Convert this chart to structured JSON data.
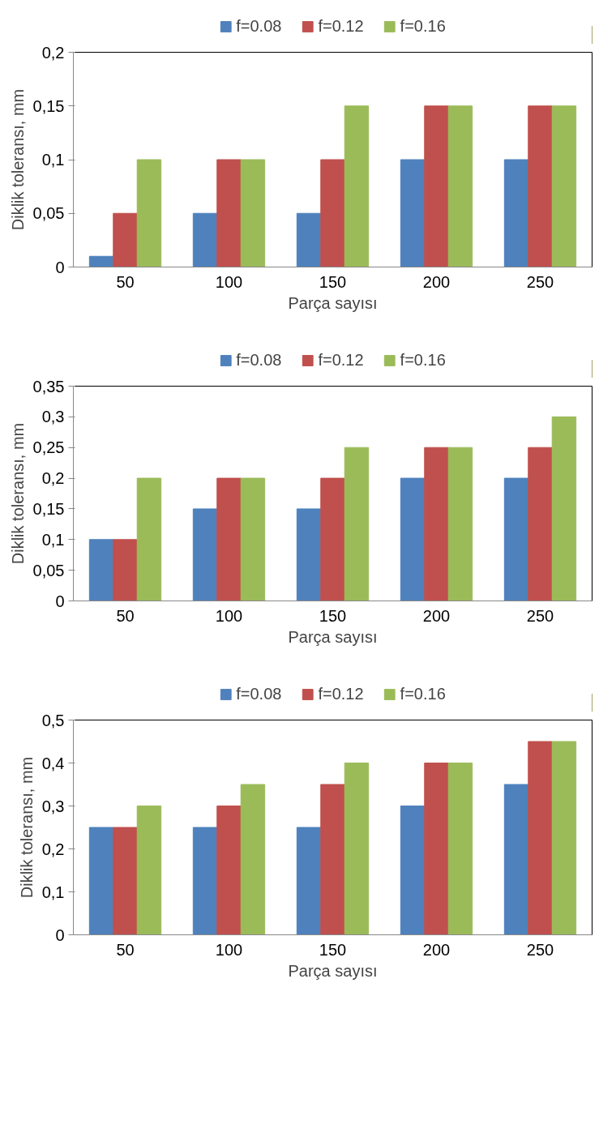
{
  "chart_data": [
    {
      "type": "bar",
      "xlabel": "Parça sayısı",
      "ylabel": "Diklik toleransı, mm",
      "categories": [
        "50",
        "100",
        "150",
        "200",
        "250"
      ],
      "series": [
        {
          "name": "f=0.08",
          "color": "#4f81bd",
          "values": [
            0.01,
            0.05,
            0.05,
            0.1,
            0.1
          ]
        },
        {
          "name": "f=0.12",
          "color": "#c0504d",
          "values": [
            0.05,
            0.1,
            0.1,
            0.15,
            0.15
          ]
        },
        {
          "name": "f=0.16",
          "color": "#9bbb59",
          "values": [
            0.1,
            0.1,
            0.15,
            0.15,
            0.15
          ]
        }
      ],
      "ylim": [
        0,
        0.2
      ],
      "yticks": [
        0,
        {
          "value": 0.05,
          "label": "0,05"
        },
        {
          "value": 0.1,
          "label": "0,1"
        },
        {
          "value": 0.15,
          "label": "0,15"
        },
        {
          "value": 0.2,
          "label": "0,2"
        }
      ],
      "legend": "top"
    },
    {
      "type": "bar",
      "xlabel": "Parça sayısı",
      "ylabel": "Diklik toleransı, mm",
      "categories": [
        "50",
        "100",
        "150",
        "200",
        "250"
      ],
      "series": [
        {
          "name": "f=0.08",
          "color": "#4f81bd",
          "values": [
            0.1,
            0.15,
            0.15,
            0.2,
            0.2
          ]
        },
        {
          "name": "f=0.12",
          "color": "#c0504d",
          "values": [
            0.1,
            0.2,
            0.2,
            0.25,
            0.25
          ]
        },
        {
          "name": "f=0.16",
          "color": "#9bbb59",
          "values": [
            0.2,
            0.2,
            0.25,
            0.25,
            0.3
          ]
        }
      ],
      "ylim": [
        0,
        0.35
      ],
      "yticks": [
        0,
        {
          "value": 0.05,
          "label": "0,05"
        },
        {
          "value": 0.1,
          "label": "0,1"
        },
        {
          "value": 0.15,
          "label": "0,15"
        },
        {
          "value": 0.2,
          "label": "0,2"
        },
        {
          "value": 0.25,
          "label": "0,25"
        },
        {
          "value": 0.3,
          "label": "0,3"
        },
        {
          "value": 0.35,
          "label": "0,35"
        }
      ],
      "legend": "top"
    },
    {
      "type": "bar",
      "xlabel": "Parça sayısı",
      "ylabel": "Diklik toleransı, mm",
      "categories": [
        "50",
        "100",
        "150",
        "200",
        "250"
      ],
      "series": [
        {
          "name": "f=0.08",
          "color": "#4f81bd",
          "values": [
            0.25,
            0.25,
            0.25,
            0.3,
            0.35
          ]
        },
        {
          "name": "f=0.12",
          "color": "#c0504d",
          "values": [
            0.25,
            0.3,
            0.35,
            0.4,
            0.45
          ]
        },
        {
          "name": "f=0.16",
          "color": "#9bbb59",
          "values": [
            0.3,
            0.35,
            0.4,
            0.4,
            0.45
          ]
        }
      ],
      "ylim": [
        0,
        0.5
      ],
      "yticks": [
        0,
        {
          "value": 0.1,
          "label": "0,1"
        },
        {
          "value": 0.2,
          "label": "0,2"
        },
        {
          "value": 0.3,
          "label": "0,3"
        },
        {
          "value": 0.4,
          "label": "0,4"
        },
        {
          "value": 0.5,
          "label": "0,5"
        }
      ],
      "legend": "top"
    }
  ]
}
